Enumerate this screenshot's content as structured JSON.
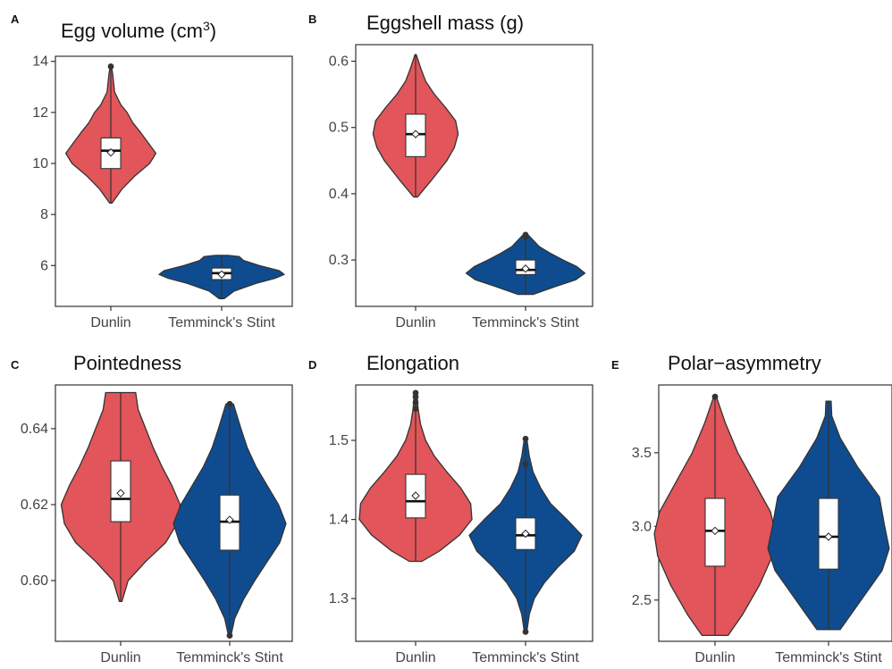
{
  "colors": {
    "Dunlin": "#E2555A",
    "Temminck's Stint": "#0F4C8F",
    "outline": "#333333"
  },
  "categories": [
    "Dunlin",
    "Temminck's Stint"
  ],
  "chart_data": [
    {
      "panel": "A",
      "type": "violin",
      "title": "Egg volume (cm",
      "title_sup": "3",
      "title_suffix": ")",
      "xlabel": "",
      "ylabel": "",
      "ylim": [
        4.4,
        14.2
      ],
      "yticks": [
        "6",
        "8",
        "10",
        "12",
        "14"
      ],
      "categories": [
        "Dunlin",
        "Temminck's Stint"
      ],
      "series": [
        {
          "name": "Dunlin",
          "min": 8.45,
          "q1": 9.8,
          "median": 10.5,
          "mean": 10.43,
          "q3": 11.0,
          "max": 13.8,
          "outliers": [
            13.8
          ],
          "density": [
            [
              8.45,
              0.02
            ],
            [
              9.0,
              0.18
            ],
            [
              9.5,
              0.38
            ],
            [
              10.0,
              0.62
            ],
            [
              10.4,
              0.72
            ],
            [
              10.8,
              0.6
            ],
            [
              11.2,
              0.48
            ],
            [
              11.6,
              0.35
            ],
            [
              12.0,
              0.26
            ],
            [
              12.3,
              0.16
            ],
            [
              12.8,
              0.06
            ],
            [
              13.5,
              0.03
            ],
            [
              13.8,
              0.01
            ]
          ]
        },
        {
          "name": "Temminck's Stint",
          "min": 4.7,
          "q1": 5.45,
          "median": 5.7,
          "mean": 5.65,
          "q3": 5.9,
          "max": 6.4,
          "outliers": [],
          "density": [
            [
              4.7,
              0.04
            ],
            [
              5.0,
              0.2
            ],
            [
              5.3,
              0.55
            ],
            [
              5.5,
              0.85
            ],
            [
              5.65,
              1.0
            ],
            [
              5.8,
              0.92
            ],
            [
              6.0,
              0.6
            ],
            [
              6.2,
              0.35
            ],
            [
              6.35,
              0.28
            ],
            [
              6.4,
              0.1
            ]
          ]
        }
      ]
    },
    {
      "panel": "B",
      "type": "violin",
      "title": "Eggshell mass (g)",
      "xlabel": "",
      "ylabel": "",
      "ylim": [
        0.23,
        0.625
      ],
      "yticks": [
        "0.3",
        "0.4",
        "0.5",
        "0.6"
      ],
      "categories": [
        "Dunlin",
        "Temminck's Stint"
      ],
      "series": [
        {
          "name": "Dunlin",
          "min": 0.395,
          "q1": 0.456,
          "median": 0.49,
          "mean": 0.49,
          "q3": 0.52,
          "max": 0.61,
          "outliers": [],
          "density": [
            [
              0.395,
              0.03
            ],
            [
              0.42,
              0.25
            ],
            [
              0.45,
              0.5
            ],
            [
              0.47,
              0.62
            ],
            [
              0.49,
              0.68
            ],
            [
              0.51,
              0.64
            ],
            [
              0.53,
              0.48
            ],
            [
              0.55,
              0.3
            ],
            [
              0.57,
              0.16
            ],
            [
              0.59,
              0.08
            ],
            [
              0.61,
              0.01
            ]
          ]
        },
        {
          "name": "Temminck's Stint",
          "min": 0.248,
          "q1": 0.278,
          "median": 0.285,
          "mean": 0.287,
          "q3": 0.3,
          "max": 0.338,
          "outliers": [
            0.335,
            0.338
          ],
          "density": [
            [
              0.248,
              0.12
            ],
            [
              0.26,
              0.48
            ],
            [
              0.27,
              0.8
            ],
            [
              0.28,
              0.95
            ],
            [
              0.29,
              0.82
            ],
            [
              0.3,
              0.6
            ],
            [
              0.31,
              0.4
            ],
            [
              0.32,
              0.22
            ],
            [
              0.33,
              0.12
            ],
            [
              0.338,
              0.04
            ]
          ]
        }
      ]
    },
    {
      "panel": "C",
      "type": "violin",
      "title": "Pointedness",
      "xlabel": "",
      "ylabel": "",
      "ylim": [
        0.584,
        0.6515
      ],
      "yticks": [
        "0.60",
        "0.62",
        "0.64"
      ],
      "categories": [
        "Dunlin",
        "Temminck's Stint"
      ],
      "series": [
        {
          "name": "Dunlin",
          "min": 0.5945,
          "q1": 0.6155,
          "median": 0.6215,
          "mean": 0.623,
          "q3": 0.6315,
          "max": 0.6495,
          "outliers": [],
          "density": [
            [
              0.5945,
              0.02
            ],
            [
              0.6,
              0.12
            ],
            [
              0.605,
              0.4
            ],
            [
              0.61,
              0.72
            ],
            [
              0.615,
              0.9
            ],
            [
              0.62,
              0.95
            ],
            [
              0.625,
              0.82
            ],
            [
              0.63,
              0.66
            ],
            [
              0.635,
              0.52
            ],
            [
              0.64,
              0.4
            ],
            [
              0.645,
              0.28
            ],
            [
              0.6495,
              0.24
            ]
          ]
        },
        {
          "name": "Temminck's Stint",
          "min": 0.5855,
          "q1": 0.608,
          "median": 0.6155,
          "mean": 0.616,
          "q3": 0.6225,
          "max": 0.6465,
          "outliers": [
            0.5855,
            0.6465
          ],
          "density": [
            [
              0.5855,
              0.02
            ],
            [
              0.59,
              0.08
            ],
            [
              0.595,
              0.22
            ],
            [
              0.6,
              0.4
            ],
            [
              0.605,
              0.6
            ],
            [
              0.61,
              0.8
            ],
            [
              0.615,
              0.9
            ],
            [
              0.62,
              0.78
            ],
            [
              0.625,
              0.6
            ],
            [
              0.63,
              0.42
            ],
            [
              0.635,
              0.28
            ],
            [
              0.64,
              0.18
            ],
            [
              0.6465,
              0.06
            ]
          ]
        }
      ]
    },
    {
      "panel": "D",
      "type": "violin",
      "title": "Elongation",
      "xlabel": "",
      "ylabel": "",
      "ylim": [
        1.246,
        1.57
      ],
      "yticks": [
        "1.3",
        "1.4",
        "1.5"
      ],
      "categories": [
        "Dunlin",
        "Temminck's Stint"
      ],
      "series": [
        {
          "name": "Dunlin",
          "min": 1.347,
          "q1": 1.402,
          "median": 1.423,
          "mean": 1.43,
          "q3": 1.457,
          "max": 1.56,
          "outliers": [
            1.54,
            1.548,
            1.555,
            1.56
          ],
          "density": [
            [
              1.347,
              0.1
            ],
            [
              1.36,
              0.38
            ],
            [
              1.38,
              0.7
            ],
            [
              1.4,
              0.9
            ],
            [
              1.42,
              0.88
            ],
            [
              1.44,
              0.72
            ],
            [
              1.46,
              0.5
            ],
            [
              1.48,
              0.3
            ],
            [
              1.5,
              0.16
            ],
            [
              1.52,
              0.08
            ],
            [
              1.54,
              0.04
            ],
            [
              1.56,
              0.02
            ]
          ]
        },
        {
          "name": "Temminck's Stint",
          "min": 1.258,
          "q1": 1.362,
          "median": 1.38,
          "mean": 1.382,
          "q3": 1.402,
          "max": 1.502,
          "outliers": [
            1.258,
            1.47,
            1.502
          ],
          "density": [
            [
              1.258,
              0.02
            ],
            [
              1.28,
              0.06
            ],
            [
              1.3,
              0.14
            ],
            [
              1.32,
              0.3
            ],
            [
              1.34,
              0.52
            ],
            [
              1.36,
              0.78
            ],
            [
              1.38,
              0.9
            ],
            [
              1.4,
              0.66
            ],
            [
              1.42,
              0.4
            ],
            [
              1.44,
              0.24
            ],
            [
              1.46,
              0.12
            ],
            [
              1.48,
              0.06
            ],
            [
              1.502,
              0.02
            ]
          ]
        }
      ]
    },
    {
      "panel": "E",
      "type": "violin",
      "title": "Polar−asymmetry",
      "xlabel": "",
      "ylabel": "",
      "ylim": [
        2.22,
        3.96
      ],
      "yticks": [
        "2.5",
        "3.0",
        "3.5"
      ],
      "categories": [
        "Dunlin",
        "Temminck's Stint"
      ],
      "series": [
        {
          "name": "Dunlin",
          "min": 2.26,
          "q1": 2.73,
          "median": 2.97,
          "mean": 2.97,
          "q3": 3.19,
          "max": 3.88,
          "outliers": [
            3.88
          ],
          "density": [
            [
              2.26,
              0.2
            ],
            [
              2.4,
              0.42
            ],
            [
              2.6,
              0.68
            ],
            [
              2.8,
              0.88
            ],
            [
              2.95,
              0.93
            ],
            [
              3.1,
              0.85
            ],
            [
              3.3,
              0.6
            ],
            [
              3.5,
              0.35
            ],
            [
              3.7,
              0.16
            ],
            [
              3.88,
              0.02
            ]
          ]
        },
        {
          "name": "Temminck's Stint",
          "min": 2.3,
          "q1": 2.71,
          "median": 2.93,
          "mean": 2.93,
          "q3": 3.19,
          "max": 3.85,
          "outliers": [],
          "density": [
            [
              2.3,
              0.18
            ],
            [
              2.5,
              0.5
            ],
            [
              2.7,
              0.82
            ],
            [
              2.85,
              0.93
            ],
            [
              3.0,
              0.86
            ],
            [
              3.2,
              0.78
            ],
            [
              3.4,
              0.45
            ],
            [
              3.6,
              0.18
            ],
            [
              3.75,
              0.05
            ],
            [
              3.85,
              0.04
            ]
          ]
        }
      ]
    }
  ]
}
